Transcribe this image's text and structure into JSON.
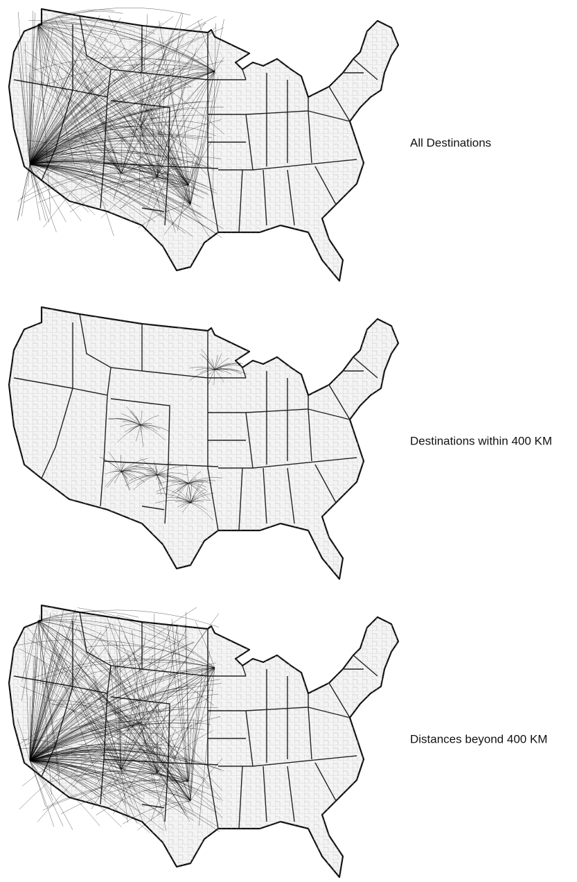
{
  "panels": [
    {
      "label": "All Destinations"
    },
    {
      "label": "Destinations within 400 KM"
    },
    {
      "label": "Distances beyond 400 KM"
    }
  ]
}
